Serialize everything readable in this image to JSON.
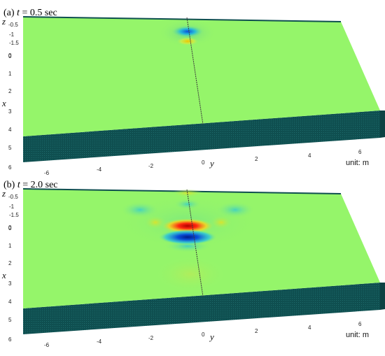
{
  "panels": [
    {
      "label_prefix": "(a) ",
      "label_var": "t",
      "label_value": " = 0.5 sec",
      "z_axis_label": "z",
      "x_axis_label": "x",
      "y_axis_label": "y",
      "z_ticks": [
        "-0.5",
        "-1",
        "-1.5",
        "0"
      ],
      "x_ticks": [
        "0",
        "1",
        "2",
        "3",
        "4",
        "5",
        "6"
      ],
      "y_ticks": [
        "-6",
        "-4",
        "-2",
        "0",
        "2",
        "4",
        "6"
      ],
      "unit_text": "unit: m"
    },
    {
      "label_prefix": "(b) ",
      "label_var": "t",
      "label_value": " = 2.0 sec",
      "z_axis_label": "z",
      "x_axis_label": "x",
      "y_axis_label": "y",
      "z_ticks": [
        "-0.5",
        "-1",
        "-1.5",
        "0"
      ],
      "x_ticks": [
        "0",
        "1",
        "2",
        "3",
        "4",
        "5",
        "6"
      ],
      "y_ticks": [
        "-6",
        "-4",
        "-2",
        "0",
        "2",
        "4",
        "6"
      ],
      "unit_text": "unit: m"
    }
  ],
  "colors": {
    "surface": "#95f56a",
    "base": "#0f4f50",
    "positive": "#e01010",
    "negative": "#0a4fd8",
    "midline": "#3a3a3a"
  }
}
